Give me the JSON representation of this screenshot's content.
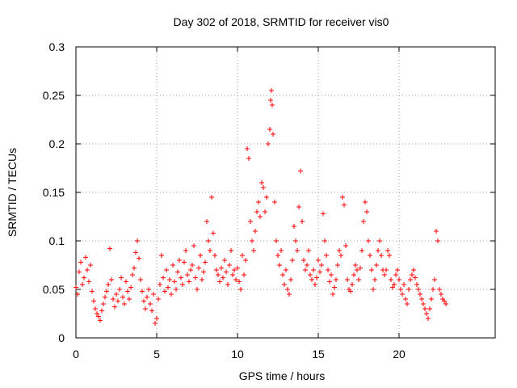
{
  "chart_data": {
    "type": "scatter",
    "title": "Day 302 of 2018, SRMTID for receiver vis0",
    "xlabel": "GPS time / hours",
    "ylabel": "SRMTID / TECUs",
    "xlim": [
      0,
      25.95
    ],
    "ylim": [
      0,
      0.3
    ],
    "grid": true,
    "marker": "+",
    "x_ticks": [
      0,
      5,
      10,
      15,
      20
    ],
    "x_tick_labels": [
      "0",
      "5",
      "10",
      "15",
      "20"
    ],
    "y_ticks": [
      0,
      0.05,
      0.1,
      0.15,
      0.2,
      0.25,
      0.3
    ],
    "y_tick_labels": [
      "0",
      "0.05",
      "0.1",
      "0.15",
      "0.2",
      "0.25",
      "0.3"
    ],
    "series": [
      {
        "name": "vis0",
        "color": "#ff0000",
        "points": [
          [
            0.0,
            0.052
          ],
          [
            0.1,
            0.045
          ],
          [
            0.2,
            0.068
          ],
          [
            0.3,
            0.078
          ],
          [
            0.4,
            0.055
          ],
          [
            0.5,
            0.062
          ],
          [
            0.6,
            0.083
          ],
          [
            0.7,
            0.07
          ],
          [
            0.8,
            0.058
          ],
          [
            0.9,
            0.075
          ],
          [
            1.0,
            0.048
          ],
          [
            1.1,
            0.038
          ],
          [
            1.2,
            0.03
          ],
          [
            1.3,
            0.025
          ],
          [
            1.4,
            0.022
          ],
          [
            1.5,
            0.018
          ],
          [
            1.6,
            0.028
          ],
          [
            1.7,
            0.035
          ],
          [
            1.8,
            0.042
          ],
          [
            1.9,
            0.048
          ],
          [
            2.0,
            0.055
          ],
          [
            2.1,
            0.092
          ],
          [
            2.2,
            0.06
          ],
          [
            2.3,
            0.04
          ],
          [
            2.4,
            0.032
          ],
          [
            2.5,
            0.045
          ],
          [
            2.6,
            0.038
          ],
          [
            2.7,
            0.05
          ],
          [
            2.8,
            0.062
          ],
          [
            2.9,
            0.042
          ],
          [
            3.0,
            0.035
          ],
          [
            3.1,
            0.058
          ],
          [
            3.2,
            0.048
          ],
          [
            3.3,
            0.04
          ],
          [
            3.4,
            0.052
          ],
          [
            3.5,
            0.065
          ],
          [
            3.6,
            0.072
          ],
          [
            3.7,
            0.088
          ],
          [
            3.8,
            0.1
          ],
          [
            3.9,
            0.082
          ],
          [
            4.0,
            0.06
          ],
          [
            4.1,
            0.048
          ],
          [
            4.2,
            0.038
          ],
          [
            4.3,
            0.03
          ],
          [
            4.4,
            0.042
          ],
          [
            4.5,
            0.05
          ],
          [
            4.6,
            0.035
          ],
          [
            4.7,
            0.028
          ],
          [
            4.8,
            0.045
          ],
          [
            4.9,
            0.015
          ],
          [
            5.0,
            0.02
          ],
          [
            5.1,
            0.04
          ],
          [
            5.2,
            0.055
          ],
          [
            5.3,
            0.085
          ],
          [
            5.4,
            0.062
          ],
          [
            5.5,
            0.048
          ],
          [
            5.6,
            0.07
          ],
          [
            5.7,
            0.052
          ],
          [
            5.8,
            0.06
          ],
          [
            5.9,
            0.045
          ],
          [
            6.0,
            0.075
          ],
          [
            6.1,
            0.058
          ],
          [
            6.2,
            0.05
          ],
          [
            6.3,
            0.068
          ],
          [
            6.4,
            0.08
          ],
          [
            6.5,
            0.062
          ],
          [
            6.6,
            0.055
          ],
          [
            6.7,
            0.078
          ],
          [
            6.8,
            0.09
          ],
          [
            6.9,
            0.065
          ],
          [
            7.0,
            0.058
          ],
          [
            7.1,
            0.07
          ],
          [
            7.2,
            0.075
          ],
          [
            7.3,
            0.095
          ],
          [
            7.4,
            0.062
          ],
          [
            7.5,
            0.05
          ],
          [
            7.6,
            0.072
          ],
          [
            7.7,
            0.085
          ],
          [
            7.8,
            0.06
          ],
          [
            7.9,
            0.068
          ],
          [
            8.0,
            0.078
          ],
          [
            8.1,
            0.12
          ],
          [
            8.2,
            0.1
          ],
          [
            8.3,
            0.09
          ],
          [
            8.4,
            0.145
          ],
          [
            8.5,
            0.108
          ],
          [
            8.6,
            0.085
          ],
          [
            8.7,
            0.07
          ],
          [
            8.8,
            0.065
          ],
          [
            8.9,
            0.058
          ],
          [
            9.0,
            0.072
          ],
          [
            9.1,
            0.062
          ],
          [
            9.2,
            0.08
          ],
          [
            9.3,
            0.068
          ],
          [
            9.4,
            0.055
          ],
          [
            9.5,
            0.075
          ],
          [
            9.6,
            0.09
          ],
          [
            9.7,
            0.065
          ],
          [
            9.8,
            0.07
          ],
          [
            9.9,
            0.06
          ],
          [
            10.0,
            0.072
          ],
          [
            10.1,
            0.058
          ],
          [
            10.2,
            0.05
          ],
          [
            10.3,
            0.085
          ],
          [
            10.4,
            0.065
          ],
          [
            10.5,
            0.08
          ],
          [
            10.6,
            0.195
          ],
          [
            10.7,
            0.185
          ],
          [
            10.8,
            0.12
          ],
          [
            10.9,
            0.1
          ],
          [
            11.0,
            0.09
          ],
          [
            11.1,
            0.11
          ],
          [
            11.2,
            0.13
          ],
          [
            11.3,
            0.14
          ],
          [
            11.4,
            0.125
          ],
          [
            11.5,
            0.16
          ],
          [
            11.6,
            0.155
          ],
          [
            11.7,
            0.13
          ],
          [
            11.8,
            0.145
          ],
          [
            11.9,
            0.2
          ],
          [
            12.0,
            0.215
          ],
          [
            12.05,
            0.245
          ],
          [
            12.1,
            0.255
          ],
          [
            12.15,
            0.24
          ],
          [
            12.2,
            0.21
          ],
          [
            12.3,
            0.14
          ],
          [
            12.4,
            0.1
          ],
          [
            12.5,
            0.085
          ],
          [
            12.6,
            0.075
          ],
          [
            12.7,
            0.09
          ],
          [
            12.8,
            0.065
          ],
          [
            12.9,
            0.055
          ],
          [
            13.0,
            0.07
          ],
          [
            13.1,
            0.05
          ],
          [
            13.2,
            0.045
          ],
          [
            13.3,
            0.06
          ],
          [
            13.4,
            0.08
          ],
          [
            13.5,
            0.115
          ],
          [
            13.6,
            0.1
          ],
          [
            13.7,
            0.09
          ],
          [
            13.8,
            0.135
          ],
          [
            13.9,
            0.172
          ],
          [
            14.0,
            0.12
          ],
          [
            14.1,
            0.08
          ],
          [
            14.2,
            0.07
          ],
          [
            14.3,
            0.075
          ],
          [
            14.4,
            0.09
          ],
          [
            14.5,
            0.065
          ],
          [
            14.6,
            0.06
          ],
          [
            14.7,
            0.07
          ],
          [
            14.8,
            0.055
          ],
          [
            14.9,
            0.062
          ],
          [
            15.0,
            0.08
          ],
          [
            15.1,
            0.068
          ],
          [
            15.2,
            0.075
          ],
          [
            15.3,
            0.128
          ],
          [
            15.4,
            0.1
          ],
          [
            15.5,
            0.085
          ],
          [
            15.6,
            0.07
          ],
          [
            15.7,
            0.058
          ],
          [
            15.8,
            0.065
          ],
          [
            15.9,
            0.045
          ],
          [
            16.0,
            0.052
          ],
          [
            16.1,
            0.06
          ],
          [
            16.2,
            0.075
          ],
          [
            16.3,
            0.09
          ],
          [
            16.4,
            0.085
          ],
          [
            16.5,
            0.145
          ],
          [
            16.6,
            0.137
          ],
          [
            16.7,
            0.095
          ],
          [
            16.8,
            0.06
          ],
          [
            16.9,
            0.05
          ],
          [
            17.0,
            0.048
          ],
          [
            17.1,
            0.055
          ],
          [
            17.2,
            0.065
          ],
          [
            17.3,
            0.075
          ],
          [
            17.4,
            0.07
          ],
          [
            17.5,
            0.06
          ],
          [
            17.6,
            0.072
          ],
          [
            17.7,
            0.09
          ],
          [
            17.8,
            0.12
          ],
          [
            17.9,
            0.14
          ],
          [
            18.0,
            0.13
          ],
          [
            18.1,
            0.1
          ],
          [
            18.2,
            0.085
          ],
          [
            18.3,
            0.07
          ],
          [
            18.4,
            0.05
          ],
          [
            18.5,
            0.06
          ],
          [
            18.6,
            0.075
          ],
          [
            18.7,
            0.09
          ],
          [
            18.8,
            0.1
          ],
          [
            18.9,
            0.085
          ],
          [
            19.0,
            0.07
          ],
          [
            19.1,
            0.065
          ],
          [
            19.2,
            0.07
          ],
          [
            19.3,
            0.09
          ],
          [
            19.4,
            0.085
          ],
          [
            19.5,
            0.06
          ],
          [
            19.6,
            0.052
          ],
          [
            19.7,
            0.055
          ],
          [
            19.8,
            0.065
          ],
          [
            19.9,
            0.07
          ],
          [
            20.0,
            0.06
          ],
          [
            20.1,
            0.05
          ],
          [
            20.2,
            0.045
          ],
          [
            20.3,
            0.055
          ],
          [
            20.4,
            0.04
          ],
          [
            20.5,
            0.035
          ],
          [
            20.6,
            0.05
          ],
          [
            20.7,
            0.06
          ],
          [
            20.8,
            0.065
          ],
          [
            20.9,
            0.07
          ],
          [
            21.0,
            0.062
          ],
          [
            21.1,
            0.055
          ],
          [
            21.2,
            0.05
          ],
          [
            21.3,
            0.045
          ],
          [
            21.4,
            0.04
          ],
          [
            21.5,
            0.035
          ],
          [
            21.6,
            0.03
          ],
          [
            21.7,
            0.025
          ],
          [
            21.8,
            0.02
          ],
          [
            21.9,
            0.03
          ],
          [
            22.0,
            0.04
          ],
          [
            22.1,
            0.05
          ],
          [
            22.2,
            0.06
          ],
          [
            22.3,
            0.11
          ],
          [
            22.4,
            0.1
          ],
          [
            22.5,
            0.05
          ],
          [
            22.6,
            0.045
          ],
          [
            22.7,
            0.04
          ],
          [
            22.8,
            0.038
          ],
          [
            22.9,
            0.035
          ]
        ]
      }
    ]
  }
}
